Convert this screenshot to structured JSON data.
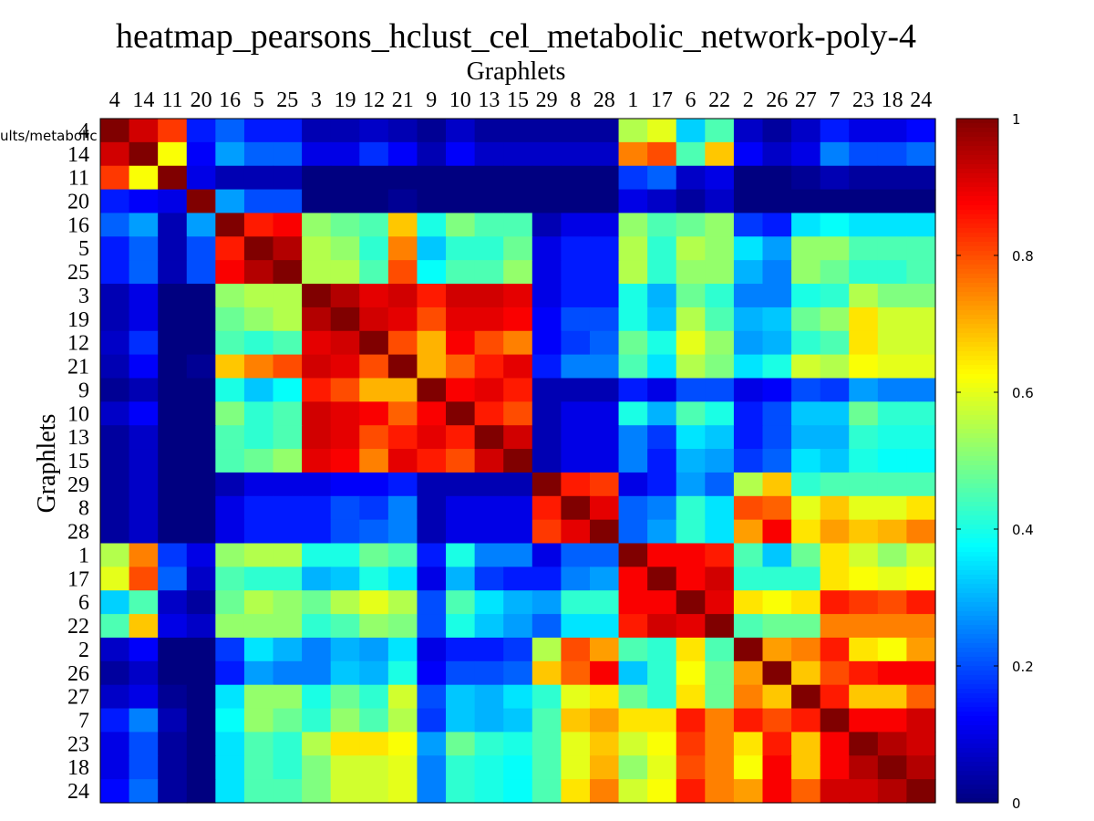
{
  "chart_data": {
    "type": "heatmap",
    "title": "heatmap_pearsons_hclust_cel_metabolic_network-poly-4",
    "xlabel": "Graphlets",
    "ylabel": "Graphlets",
    "clipped_label": "ults/metabolic",
    "categories": [
      "4",
      "14",
      "11",
      "20",
      "16",
      "5",
      "25",
      "3",
      "19",
      "12",
      "21",
      "9",
      "10",
      "13",
      "15",
      "29",
      "8",
      "28",
      "1",
      "17",
      "6",
      "22",
      "2",
      "26",
      "27",
      "7",
      "23",
      "18",
      "24"
    ],
    "colorbar": {
      "min": 0,
      "max": 1,
      "ticks": [
        "0",
        "0.2",
        "0.4",
        "0.6",
        "0.8",
        "1"
      ],
      "colormap": "jet"
    },
    "values": [
      [
        1.0,
        0.92,
        0.82,
        0.15,
        0.22,
        0.15,
        0.15,
        0.05,
        0.05,
        0.07,
        0.05,
        0.02,
        0.07,
        0.03,
        0.03,
        0.03,
        0.03,
        0.03,
        0.55,
        0.6,
        0.33,
        0.45,
        0.07,
        0.03,
        0.07,
        0.15,
        0.1,
        0.1,
        0.13
      ],
      [
        0.92,
        1.0,
        0.62,
        0.12,
        0.28,
        0.22,
        0.22,
        0.1,
        0.1,
        0.17,
        0.12,
        0.05,
        0.12,
        0.07,
        0.07,
        0.07,
        0.07,
        0.07,
        0.75,
        0.8,
        0.45,
        0.68,
        0.12,
        0.07,
        0.1,
        0.25,
        0.2,
        0.2,
        0.23
      ],
      [
        0.82,
        0.62,
        1.0,
        0.1,
        0.05,
        0.05,
        0.05,
        0.0,
        0.0,
        0.0,
        0.0,
        0.0,
        0.0,
        0.0,
        0.0,
        0.0,
        0.0,
        0.0,
        0.18,
        0.22,
        0.07,
        0.1,
        0.0,
        0.0,
        0.02,
        0.05,
        0.03,
        0.03,
        0.03
      ],
      [
        0.15,
        0.12,
        0.1,
        1.0,
        0.28,
        0.2,
        0.2,
        0.0,
        0.0,
        0.0,
        0.02,
        0.0,
        0.0,
        0.0,
        0.0,
        0.0,
        0.0,
        0.0,
        0.1,
        0.07,
        0.03,
        0.07,
        0.0,
        0.0,
        0.0,
        0.0,
        0.0,
        0.0,
        0.0
      ],
      [
        0.22,
        0.28,
        0.05,
        0.28,
        1.0,
        0.85,
        0.88,
        0.52,
        0.48,
        0.45,
        0.68,
        0.4,
        0.5,
        0.45,
        0.45,
        0.05,
        0.1,
        0.1,
        0.52,
        0.45,
        0.48,
        0.52,
        0.18,
        0.15,
        0.35,
        0.38,
        0.35,
        0.35,
        0.35
      ],
      [
        0.15,
        0.22,
        0.05,
        0.2,
        0.85,
        1.0,
        0.95,
        0.55,
        0.52,
        0.42,
        0.75,
        0.32,
        0.42,
        0.42,
        0.48,
        0.1,
        0.15,
        0.15,
        0.55,
        0.42,
        0.55,
        0.52,
        0.35,
        0.28,
        0.52,
        0.52,
        0.45,
        0.45,
        0.45
      ],
      [
        0.15,
        0.22,
        0.05,
        0.2,
        0.88,
        0.95,
        1.0,
        0.55,
        0.55,
        0.45,
        0.8,
        0.38,
        0.45,
        0.45,
        0.52,
        0.1,
        0.15,
        0.15,
        0.55,
        0.42,
        0.52,
        0.52,
        0.3,
        0.25,
        0.52,
        0.48,
        0.42,
        0.42,
        0.45
      ],
      [
        0.05,
        0.1,
        0.0,
        0.0,
        0.52,
        0.55,
        0.55,
        1.0,
        0.95,
        0.9,
        0.92,
        0.85,
        0.92,
        0.92,
        0.9,
        0.1,
        0.15,
        0.15,
        0.4,
        0.3,
        0.48,
        0.42,
        0.25,
        0.25,
        0.4,
        0.42,
        0.55,
        0.5,
        0.5
      ],
      [
        0.05,
        0.1,
        0.0,
        0.0,
        0.48,
        0.52,
        0.55,
        0.95,
        1.0,
        0.92,
        0.9,
        0.8,
        0.9,
        0.9,
        0.88,
        0.12,
        0.2,
        0.2,
        0.4,
        0.32,
        0.55,
        0.45,
        0.3,
        0.32,
        0.48,
        0.52,
        0.65,
        0.58,
        0.58
      ],
      [
        0.07,
        0.17,
        0.0,
        0.0,
        0.45,
        0.42,
        0.45,
        0.9,
        0.92,
        1.0,
        0.8,
        0.7,
        0.88,
        0.8,
        0.75,
        0.12,
        0.18,
        0.22,
        0.48,
        0.4,
        0.6,
        0.52,
        0.28,
        0.3,
        0.42,
        0.45,
        0.65,
        0.58,
        0.58
      ],
      [
        0.05,
        0.12,
        0.0,
        0.02,
        0.68,
        0.75,
        0.8,
        0.92,
        0.9,
        0.8,
        1.0,
        0.7,
        0.78,
        0.85,
        0.9,
        0.15,
        0.25,
        0.25,
        0.45,
        0.35,
        0.55,
        0.5,
        0.35,
        0.4,
        0.58,
        0.55,
        0.62,
        0.6,
        0.6
      ],
      [
        0.02,
        0.05,
        0.0,
        0.0,
        0.4,
        0.32,
        0.38,
        0.85,
        0.8,
        0.7,
        0.7,
        1.0,
        0.88,
        0.9,
        0.85,
        0.05,
        0.05,
        0.05,
        0.15,
        0.1,
        0.2,
        0.2,
        0.1,
        0.12,
        0.2,
        0.18,
        0.28,
        0.25,
        0.25
      ],
      [
        0.07,
        0.12,
        0.0,
        0.0,
        0.5,
        0.42,
        0.45,
        0.92,
        0.9,
        0.88,
        0.78,
        0.88,
        1.0,
        0.85,
        0.8,
        0.05,
        0.1,
        0.1,
        0.4,
        0.3,
        0.45,
        0.4,
        0.15,
        0.2,
        0.32,
        0.32,
        0.48,
        0.42,
        0.42
      ],
      [
        0.03,
        0.07,
        0.0,
        0.0,
        0.45,
        0.42,
        0.45,
        0.92,
        0.9,
        0.8,
        0.85,
        0.9,
        0.85,
        1.0,
        0.92,
        0.05,
        0.1,
        0.1,
        0.25,
        0.18,
        0.35,
        0.32,
        0.15,
        0.2,
        0.3,
        0.3,
        0.42,
        0.4,
        0.4
      ],
      [
        0.03,
        0.07,
        0.0,
        0.0,
        0.45,
        0.48,
        0.52,
        0.9,
        0.88,
        0.75,
        0.9,
        0.85,
        0.8,
        0.92,
        1.0,
        0.05,
        0.1,
        0.1,
        0.25,
        0.15,
        0.3,
        0.28,
        0.18,
        0.22,
        0.35,
        0.32,
        0.4,
        0.38,
        0.38
      ],
      [
        0.03,
        0.07,
        0.0,
        0.0,
        0.05,
        0.1,
        0.1,
        0.1,
        0.12,
        0.12,
        0.15,
        0.05,
        0.05,
        0.05,
        0.05,
        1.0,
        0.85,
        0.82,
        0.1,
        0.15,
        0.28,
        0.22,
        0.55,
        0.68,
        0.42,
        0.45,
        0.45,
        0.45,
        0.45
      ],
      [
        0.03,
        0.07,
        0.0,
        0.0,
        0.1,
        0.15,
        0.15,
        0.15,
        0.2,
        0.18,
        0.25,
        0.05,
        0.1,
        0.1,
        0.1,
        0.85,
        1.0,
        0.9,
        0.22,
        0.25,
        0.42,
        0.35,
        0.8,
        0.78,
        0.6,
        0.68,
        0.6,
        0.6,
        0.65
      ],
      [
        0.03,
        0.07,
        0.0,
        0.0,
        0.1,
        0.15,
        0.15,
        0.15,
        0.2,
        0.22,
        0.25,
        0.05,
        0.1,
        0.1,
        0.1,
        0.82,
        0.9,
        1.0,
        0.22,
        0.28,
        0.42,
        0.35,
        0.72,
        0.88,
        0.65,
        0.72,
        0.68,
        0.7,
        0.75
      ],
      [
        0.55,
        0.75,
        0.18,
        0.1,
        0.52,
        0.55,
        0.55,
        0.4,
        0.4,
        0.48,
        0.45,
        0.15,
        0.4,
        0.25,
        0.25,
        0.1,
        0.22,
        0.22,
        1.0,
        0.88,
        0.88,
        0.85,
        0.45,
        0.32,
        0.48,
        0.65,
        0.58,
        0.52,
        0.58
      ],
      [
        0.6,
        0.8,
        0.22,
        0.07,
        0.45,
        0.42,
        0.42,
        0.3,
        0.32,
        0.4,
        0.35,
        0.1,
        0.3,
        0.18,
        0.15,
        0.15,
        0.25,
        0.28,
        0.88,
        1.0,
        0.88,
        0.92,
        0.42,
        0.42,
        0.42,
        0.65,
        0.62,
        0.6,
        0.62
      ],
      [
        0.33,
        0.45,
        0.07,
        0.03,
        0.48,
        0.55,
        0.52,
        0.48,
        0.55,
        0.6,
        0.55,
        0.2,
        0.45,
        0.35,
        0.3,
        0.28,
        0.42,
        0.42,
        0.88,
        0.88,
        1.0,
        0.9,
        0.65,
        0.62,
        0.65,
        0.85,
        0.82,
        0.8,
        0.85
      ],
      [
        0.45,
        0.68,
        0.1,
        0.07,
        0.52,
        0.52,
        0.52,
        0.42,
        0.45,
        0.52,
        0.5,
        0.2,
        0.4,
        0.32,
        0.28,
        0.22,
        0.35,
        0.35,
        0.85,
        0.92,
        0.9,
        1.0,
        0.45,
        0.48,
        0.48,
        0.75,
        0.75,
        0.75,
        0.75
      ],
      [
        0.07,
        0.12,
        0.0,
        0.0,
        0.18,
        0.35,
        0.3,
        0.25,
        0.3,
        0.28,
        0.35,
        0.1,
        0.15,
        0.15,
        0.18,
        0.55,
        0.8,
        0.72,
        0.45,
        0.42,
        0.65,
        0.45,
        1.0,
        0.72,
        0.75,
        0.85,
        0.65,
        0.62,
        0.72
      ],
      [
        0.03,
        0.07,
        0.0,
        0.0,
        0.15,
        0.28,
        0.25,
        0.25,
        0.32,
        0.3,
        0.4,
        0.12,
        0.2,
        0.2,
        0.22,
        0.68,
        0.78,
        0.88,
        0.32,
        0.42,
        0.62,
        0.48,
        0.72,
        1.0,
        0.68,
        0.8,
        0.85,
        0.88,
        0.88
      ],
      [
        0.07,
        0.1,
        0.02,
        0.0,
        0.35,
        0.52,
        0.52,
        0.4,
        0.48,
        0.42,
        0.58,
        0.2,
        0.32,
        0.3,
        0.35,
        0.42,
        0.6,
        0.65,
        0.48,
        0.42,
        0.65,
        0.48,
        0.75,
        0.68,
        1.0,
        0.85,
        0.68,
        0.68,
        0.78
      ],
      [
        0.15,
        0.25,
        0.05,
        0.0,
        0.38,
        0.52,
        0.48,
        0.42,
        0.52,
        0.45,
        0.55,
        0.18,
        0.32,
        0.3,
        0.32,
        0.45,
        0.68,
        0.72,
        0.65,
        0.65,
        0.85,
        0.75,
        0.85,
        0.8,
        0.85,
        1.0,
        0.88,
        0.88,
        0.92
      ],
      [
        0.1,
        0.2,
        0.03,
        0.0,
        0.35,
        0.45,
        0.42,
        0.55,
        0.65,
        0.65,
        0.62,
        0.28,
        0.48,
        0.42,
        0.4,
        0.45,
        0.6,
        0.68,
        0.58,
        0.62,
        0.82,
        0.75,
        0.65,
        0.85,
        0.68,
        0.88,
        1.0,
        0.95,
        0.92
      ],
      [
        0.1,
        0.2,
        0.03,
        0.0,
        0.35,
        0.45,
        0.42,
        0.5,
        0.58,
        0.58,
        0.6,
        0.25,
        0.42,
        0.4,
        0.38,
        0.45,
        0.6,
        0.7,
        0.52,
        0.6,
        0.8,
        0.75,
        0.62,
        0.88,
        0.68,
        0.88,
        0.95,
        1.0,
        0.95
      ],
      [
        0.13,
        0.23,
        0.03,
        0.0,
        0.35,
        0.45,
        0.45,
        0.5,
        0.58,
        0.58,
        0.6,
        0.25,
        0.42,
        0.4,
        0.38,
        0.45,
        0.65,
        0.75,
        0.58,
        0.62,
        0.85,
        0.75,
        0.72,
        0.88,
        0.78,
        0.92,
        0.92,
        0.95,
        1.0
      ]
    ]
  }
}
